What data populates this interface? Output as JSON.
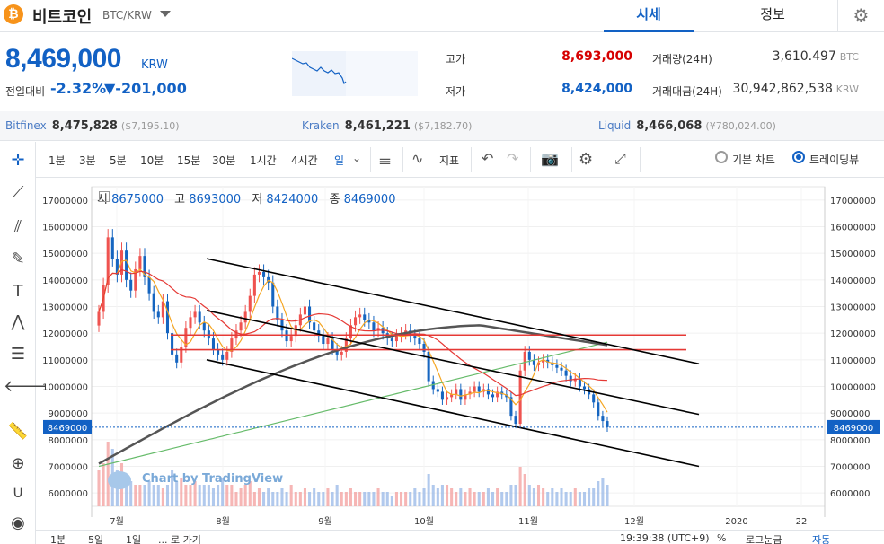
{
  "header": {
    "coin_symbol": "₿",
    "coin_name": "비트코인",
    "pair": "BTC/KRW",
    "tabs": [
      {
        "label": "시세",
        "active": true
      },
      {
        "label": "정보",
        "active": false
      }
    ],
    "settings_icon": "gear-icon"
  },
  "price": {
    "current": "8,469,000",
    "unit": "KRW",
    "change_label": "전일대비",
    "change_rate": "-2.32%",
    "change_amount": "▼-201,000"
  },
  "stats": {
    "high_label": "고가",
    "high": "8,693,000",
    "low_label": "저가",
    "low": "8,424,000",
    "vol_label": "거래량(24H)",
    "vol": "3,610.497",
    "vol_unit": "BTC",
    "value_label": "거래대금(24H)",
    "value": "30,942,862,538",
    "value_unit": "KRW"
  },
  "exchanges": [
    {
      "name": "Bitfinex",
      "price": "8,475,828",
      "foreign": "($7,195.10)"
    },
    {
      "name": "Kraken",
      "price": "8,461,221",
      "foreign": "($7,182.70)"
    },
    {
      "name": "Liquid",
      "price": "8,466,068",
      "foreign": "(¥780,024.00)"
    }
  ],
  "toolbar": {
    "intervals": [
      "1분",
      "3분",
      "5분",
      "10분",
      "15분",
      "30분",
      "1시간",
      "4시간",
      "일"
    ],
    "active_interval": "일",
    "indicator_label": "지표",
    "view_basic": "기본 차트",
    "view_tv": "트레이딩뷰",
    "view_selected": "트레이딩뷰"
  },
  "legend": {
    "o_label": "시",
    "o": "8675000",
    "h_label": "고",
    "h": "8693000",
    "l_label": "저",
    "l": "8424000",
    "c_label": "종",
    "c": "8469000"
  },
  "branding": "Chart by TradingView",
  "bottom": {
    "ranges": [
      "1분",
      "5일",
      "1일"
    ],
    "goto": "... 로 가기",
    "time": "19:39:38 (UTC+9)",
    "pct": "%",
    "log": "로그눈금",
    "auto": "자동"
  },
  "colors": {
    "up": "#ef5350",
    "down": "#1565c0",
    "price_blue": "#1261c4",
    "price_red": "#d60000",
    "ma_short": "#f5a623",
    "ma_mid": "#e53935",
    "ma_long": "#66bb6a",
    "ma_xlong": "#555555",
    "hline": "#e53935",
    "channel": "#000000"
  },
  "chart_data": {
    "type": "candlestick",
    "y_ticks": [
      "17000000",
      "16000000",
      "15000000",
      "14000000",
      "13000000",
      "12000000",
      "11000000",
      "10000000",
      "9000000",
      "8000000",
      "7000000",
      "6000000"
    ],
    "y_range": [
      5500000,
      17500000
    ],
    "x_labels": [
      "7월",
      "8월",
      "9월",
      "10월",
      "11월",
      "12월",
      "2020",
      "22"
    ],
    "last_price_label": "8469000",
    "last_price": 8469000,
    "horizontal_lines": [
      11930000,
      11380000
    ],
    "closes": [
      12800000,
      13800000,
      15600000,
      14800000,
      14200000,
      15100000,
      14000000,
      13600000,
      14400000,
      14900000,
      14100000,
      13500000,
      12800000,
      12600000,
      13200000,
      12000000,
      11200000,
      10900000,
      11500000,
      12200000,
      12600000,
      12800000,
      12400000,
      12100000,
      11800000,
      11400000,
      11200000,
      11000000,
      11300000,
      11800000,
      12100000,
      12400000,
      12800000,
      13400000,
      14200000,
      14300000,
      14100000,
      13900000,
      13000000,
      12500000,
      12100000,
      11700000,
      11900000,
      12300000,
      12700000,
      13000000,
      12400000,
      12100000,
      11900000,
      11600000,
      11800000,
      11400000,
      11200000,
      11300000,
      11800000,
      12300000,
      12600000,
      12700000,
      12500000,
      12400000,
      12100000,
      12200000,
      12000000,
      11800000,
      11700000,
      11900000,
      12000000,
      12100000,
      11900000,
      11800000,
      11600000,
      11300000,
      10200000,
      9900000,
      9800000,
      9500000,
      9600000,
      9700000,
      9900000,
      9500000,
      9700000,
      9800000,
      10000000,
      9800000,
      9900000,
      9700000,
      9600000,
      9800000,
      9700000,
      9600000,
      8900000,
      8600000,
      10600000,
      11300000,
      11000000,
      10800000,
      10900000,
      11000000,
      10900000,
      10800000,
      10700000,
      10600000,
      10400000,
      10200000,
      10300000,
      10000000,
      9900000,
      9700000,
      9400000,
      8900000,
      8700000,
      8469000
    ],
    "volumes": [
      0.5,
      0.6,
      0.9,
      0.8,
      0.5,
      0.6,
      0.4,
      0.35,
      0.3,
      0.3,
      0.3,
      0.35,
      0.3,
      0.3,
      0.25,
      0.3,
      0.5,
      0.35,
      0.4,
      0.3,
      0.3,
      0.35,
      0.3,
      0.3,
      0.3,
      0.25,
      0.3,
      0.4,
      0.3,
      0.3,
      0.2,
      0.25,
      0.3,
      0.35,
      0.2,
      0.25,
      0.2,
      0.25,
      0.2,
      0.2,
      0.25,
      0.2,
      0.3,
      0.2,
      0.2,
      0.25,
      0.2,
      0.25,
      0.2,
      0.2,
      0.25,
      0.2,
      0.3,
      0.2,
      0.2,
      0.25,
      0.2,
      0.2,
      0.2,
      0.2,
      0.2,
      0.25,
      0.2,
      0.2,
      0.15,
      0.2,
      0.2,
      0.2,
      0.2,
      0.25,
      0.2,
      0.25,
      0.45,
      0.3,
      0.25,
      0.3,
      0.3,
      0.25,
      0.2,
      0.25,
      0.2,
      0.25,
      0.2,
      0.2,
      0.2,
      0.25,
      0.2,
      0.25,
      0.2,
      0.2,
      0.3,
      0.3,
      0.55,
      0.45,
      0.3,
      0.25,
      0.3,
      0.25,
      0.2,
      0.25,
      0.2,
      0.25,
      0.2,
      0.2,
      0.25,
      0.2,
      0.2,
      0.25,
      0.25,
      0.35,
      0.4,
      0.3
    ]
  }
}
